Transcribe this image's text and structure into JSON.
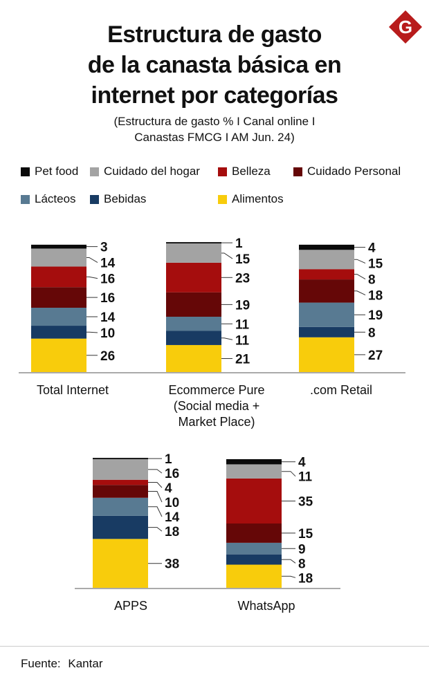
{
  "title_lines": [
    "Estructura de gasto",
    "de la canasta básica en",
    "internet por categorías"
  ],
  "subtitle_lines": [
    "(Estructura de gasto % I Canal online I",
    "Canastas FMCG I AM Jun. 24)"
  ],
  "logo": {
    "letter": "G",
    "color": "#b81c1c"
  },
  "legend": {
    "pet_food": "Pet food",
    "cuidado_hogar": "Cuidado del hogar",
    "belleza": "Belleza",
    "cuidado_personal": "Cuidado Personal",
    "lacteos": "Lácteos",
    "bebidas": "Bebidas",
    "alimentos": "Alimentos"
  },
  "chart_data": {
    "type": "bar",
    "stacked": true,
    "unit": "%",
    "series": [
      {
        "key": "alimentos",
        "name": "Alimentos",
        "color": "#f8cc0c"
      },
      {
        "key": "bebidas",
        "name": "Bebidas",
        "color": "#183b63"
      },
      {
        "key": "lacteos",
        "name": "Lácteos",
        "color": "#587a92"
      },
      {
        "key": "cuidado_personal",
        "name": "Cuidado Personal",
        "color": "#650707"
      },
      {
        "key": "belleza",
        "name": "Belleza",
        "color": "#a50d0d"
      },
      {
        "key": "cuidado_hogar",
        "name": "Cuidado del hogar",
        "color": "#a3a3a3"
      },
      {
        "key": "pet_food",
        "name": "Pet food",
        "color": "#0a0a0a"
      }
    ],
    "bars": [
      {
        "label_lines": [
          "Total Internet"
        ],
        "values": [
          26,
          10,
          14,
          16,
          16,
          14,
          3
        ]
      },
      {
        "label_lines": [
          "Ecommerce Pure",
          "(Social media +",
          "Market Place)"
        ],
        "values": [
          21,
          11,
          11,
          19,
          23,
          15,
          1
        ]
      },
      {
        "label_lines": [
          ".com Retail"
        ],
        "values": [
          27,
          8,
          19,
          18,
          8,
          15,
          4
        ]
      },
      {
        "label_lines": [
          "APPS"
        ],
        "values": [
          38,
          18,
          14,
          10,
          4,
          16,
          1
        ]
      },
      {
        "label_lines": [
          "WhatsApp"
        ],
        "values": [
          18,
          8,
          9,
          15,
          35,
          11,
          4
        ]
      }
    ]
  },
  "footer": {
    "label": "Fuente:",
    "source": "Kantar"
  }
}
